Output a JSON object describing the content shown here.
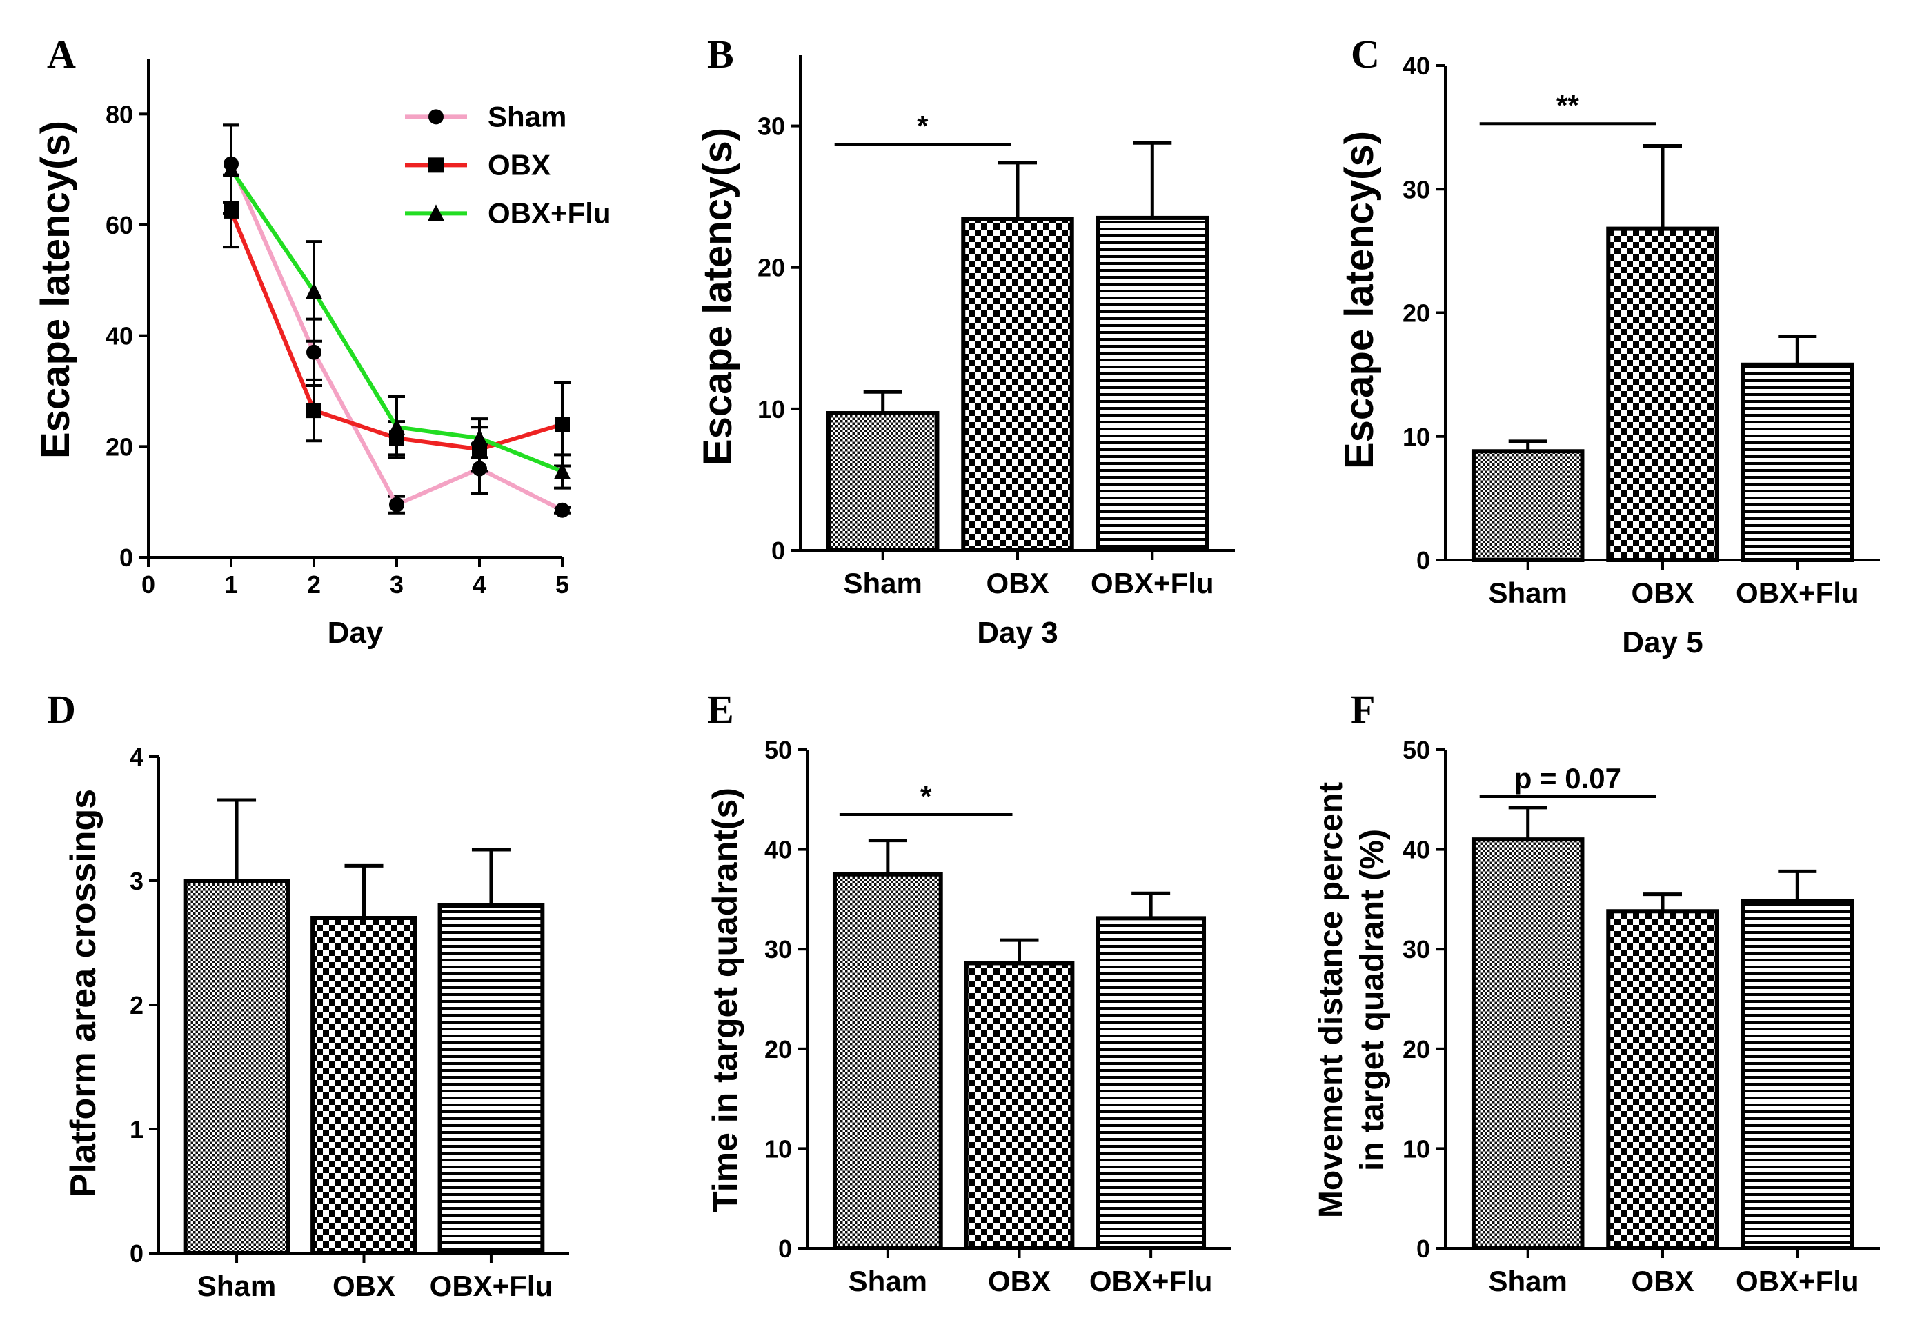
{
  "figure": {
    "categories": [
      "Sham",
      "OBX",
      "OBX+Flu"
    ]
  },
  "chart_data": [
    {
      "id": "A",
      "type": "line",
      "panel_letter": "A",
      "title": "",
      "xlabel": "Day",
      "ylabel": "Escape latency(s)",
      "x": [
        1,
        2,
        3,
        4,
        5
      ],
      "xlim": [
        0,
        5
      ],
      "xticks": [
        0,
        1,
        2,
        3,
        4,
        5
      ],
      "ylim": [
        0,
        90
      ],
      "yticks": [
        0,
        20,
        40,
        60,
        80
      ],
      "legend_position": "top-right",
      "series": [
        {
          "name": "Sham",
          "color": "#f4a3c4",
          "marker": "circle",
          "values": [
            71,
            37,
            9.5,
            16,
            8.5
          ],
          "errors": [
            7,
            6,
            1.5,
            4.5,
            0.5
          ]
        },
        {
          "name": "OBX",
          "color": "#ee2222",
          "marker": "square",
          "values": [
            62.5,
            26.5,
            21.5,
            19.5,
            24
          ],
          "errors": [
            6.5,
            5.5,
            3,
            4,
            7.5
          ]
        },
        {
          "name": "OBX+Flu",
          "color": "#22dd22",
          "marker": "triangle",
          "values": [
            70,
            48,
            23.5,
            21.5,
            15.5
          ],
          "errors": [
            8,
            9,
            5.5,
            3.5,
            3
          ]
        }
      ]
    },
    {
      "id": "B",
      "type": "bar",
      "panel_letter": "B",
      "title": "",
      "xlabel": "Day 3",
      "ylabel": "Escape latency(s)",
      "categories": [
        "Sham",
        "OBX",
        "OBX+Flu"
      ],
      "values": [
        9.7,
        23.4,
        23.5
      ],
      "errors": [
        1.5,
        4.0,
        5.3
      ],
      "ylim": [
        0,
        35
      ],
      "yticks": [
        0,
        10,
        20,
        30
      ],
      "significance": [
        {
          "from": 0,
          "to": 1,
          "label": "*",
          "y": 28.7
        }
      ]
    },
    {
      "id": "C",
      "type": "bar",
      "panel_letter": "C",
      "title": "",
      "xlabel": "Day 5",
      "ylabel": "Escape latency(s)",
      "categories": [
        "Sham",
        "OBX",
        "OBX+Flu"
      ],
      "values": [
        8.8,
        26.8,
        15.8
      ],
      "errors": [
        0.8,
        6.7,
        2.3
      ],
      "ylim": [
        0,
        40
      ],
      "yticks": [
        0,
        10,
        20,
        30,
        40
      ],
      "significance": [
        {
          "from": 0,
          "to": 1,
          "label": "**",
          "y": 35.3
        }
      ]
    },
    {
      "id": "D",
      "type": "bar",
      "panel_letter": "D",
      "title": "",
      "xlabel": "",
      "ylabel": "Platform area crossings",
      "categories": [
        "Sham",
        "OBX",
        "OBX+Flu"
      ],
      "values": [
        3.0,
        2.7,
        2.8
      ],
      "errors": [
        0.65,
        0.42,
        0.45
      ],
      "ylim": [
        0,
        4
      ],
      "yticks": [
        0,
        1,
        2,
        3,
        4
      ],
      "significance": []
    },
    {
      "id": "E",
      "type": "bar",
      "panel_letter": "E",
      "title": "",
      "xlabel": "",
      "ylabel": "Time in target quadrant(s)",
      "categories": [
        "Sham",
        "OBX",
        "OBX+Flu"
      ],
      "values": [
        37.5,
        28.6,
        33.1
      ],
      "errors": [
        3.4,
        2.3,
        2.5
      ],
      "ylim": [
        0,
        50
      ],
      "yticks": [
        0,
        10,
        20,
        30,
        40,
        50
      ],
      "significance": [
        {
          "from": 0,
          "to": 1,
          "label": "*",
          "y": 43.5
        }
      ]
    },
    {
      "id": "F",
      "type": "bar",
      "panel_letter": "F",
      "title": "",
      "xlabel": "",
      "ylabel": "Movement distance percent",
      "ylabel2": "in target quadrant (%)",
      "categories": [
        "Sham",
        "OBX",
        "OBX+Flu"
      ],
      "values": [
        41.0,
        33.8,
        34.8
      ],
      "errors": [
        3.2,
        1.7,
        3.0
      ],
      "ylim": [
        0,
        50
      ],
      "yticks": [
        0,
        10,
        20,
        30,
        40,
        50
      ],
      "significance": [
        {
          "from": 0,
          "to": 1,
          "label": "p = 0.07",
          "y": 45.3
        }
      ]
    }
  ]
}
